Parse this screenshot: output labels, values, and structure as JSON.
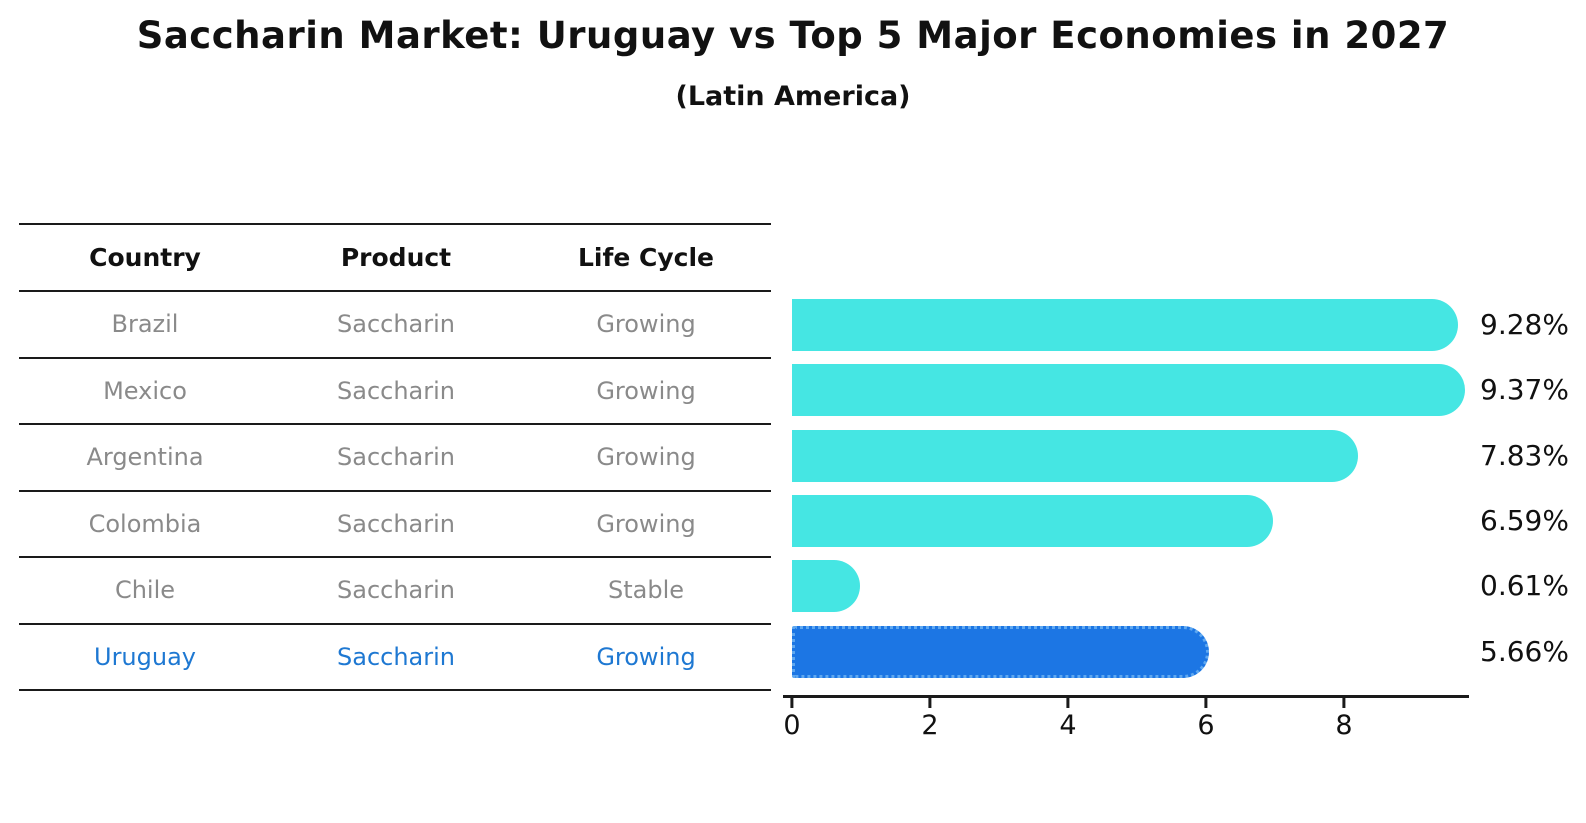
{
  "title": "Saccharin Market: Uruguay vs Top 5 Major Economies in 2027",
  "subtitle": "(Latin America)",
  "table": {
    "headers": {
      "country": "Country",
      "product": "Product",
      "life_cycle": "Life Cycle"
    },
    "rows": [
      {
        "country": "Brazil",
        "product": "Saccharin",
        "life_cycle": "Growing"
      },
      {
        "country": "Mexico",
        "product": "Saccharin",
        "life_cycle": "Growing"
      },
      {
        "country": "Argentina",
        "product": "Saccharin",
        "life_cycle": "Growing"
      },
      {
        "country": "Colombia",
        "product": "Saccharin",
        "life_cycle": "Growing"
      },
      {
        "country": "Chile",
        "product": "Saccharin",
        "life_cycle": "Stable"
      },
      {
        "country": "Uruguay",
        "product": "Saccharin",
        "life_cycle": "Growing"
      }
    ],
    "highlight_row_index": 5
  },
  "chart_data": {
    "type": "bar",
    "orientation": "horizontal",
    "title": "Saccharin Market: Uruguay vs Top 5 Major Economies in 2027 (Latin America)",
    "categories": [
      "Brazil",
      "Mexico",
      "Argentina",
      "Colombia",
      "Chile",
      "Uruguay"
    ],
    "values": [
      9.28,
      9.37,
      7.83,
      6.59,
      0.61,
      5.66
    ],
    "value_labels": [
      "9.28%",
      "9.37%",
      "7.83%",
      "6.59%",
      "0.61%",
      "5.66%"
    ],
    "units": "percent",
    "xlim": [
      0,
      9.8
    ],
    "xticks": [
      0,
      2,
      4,
      6,
      8
    ],
    "xtick_labels": [
      "0",
      "2",
      "4",
      "6",
      "8"
    ],
    "grid": false,
    "legend": "none",
    "bar_color": "#45E6E3",
    "highlight_color": "#1C76E4",
    "highlight_index": 5,
    "highlight_border_style": "dotted"
  },
  "colors": {
    "text_dark": "#111111",
    "text_gray": "#8a8a8a",
    "highlight_text": "#1E78D2",
    "line": "#1a1a1a",
    "background": "#ffffff"
  }
}
